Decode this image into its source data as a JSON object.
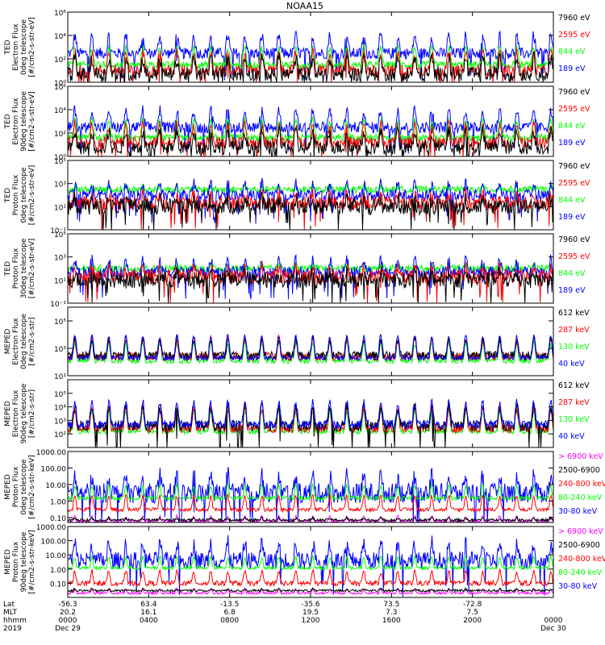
{
  "title": "NOAA15",
  "colors": {
    "black": "#000000",
    "blue": "#0000ff",
    "red": "#ff0000",
    "green": "#00ff00",
    "magenta": "#ff00ff"
  },
  "chart_data": [
    {
      "type": "line",
      "log": true,
      "ylim": [
        1,
        1000000
      ],
      "ylabel": [
        "TED",
        "Electron Flux",
        "0deg telescope",
        "[#/cm2-s-str-eV]"
      ],
      "yticks": [
        {
          "v": 1,
          "label": "10⁰"
        },
        {
          "v": 100,
          "label": "10²"
        },
        {
          "v": 10000,
          "label": "10⁴"
        },
        {
          "v": 1000000,
          "label": "10⁶"
        }
      ],
      "legend": [
        {
          "name": "7960 eV",
          "color": "black"
        },
        {
          "name": "2595 eV",
          "color": "red"
        },
        {
          "name": "844 eV",
          "color": "green"
        },
        {
          "name": "189 eV",
          "color": "blue"
        }
      ],
      "series": [
        {
          "color": "blue",
          "base": 300,
          "amp": 300,
          "noise": 3
        },
        {
          "color": "green",
          "base": 30,
          "amp": 300,
          "noise": 2
        },
        {
          "color": "red",
          "base": 10,
          "amp": 300,
          "noise": 3
        },
        {
          "color": "black",
          "base": 5,
          "amp": 200,
          "noise": 4
        }
      ]
    },
    {
      "type": "line",
      "log": true,
      "ylim": [
        1,
        1000000
      ],
      "ylabel": [
        "TED",
        "Electron Flux",
        "90deg telescope",
        "[#/cm2-s-str-eV]"
      ],
      "yticks": [
        {
          "v": 1,
          "label": "10⁰"
        },
        {
          "v": 100,
          "label": "10²"
        },
        {
          "v": 10000,
          "label": "10⁴"
        },
        {
          "v": 1000000,
          "label": "10⁶"
        }
      ],
      "legend": [
        {
          "name": "7960 eV",
          "color": "black"
        },
        {
          "name": "2595 eV",
          "color": "red"
        },
        {
          "name": "844 eV",
          "color": "green"
        },
        {
          "name": "189 eV",
          "color": "blue"
        }
      ],
      "series": [
        {
          "color": "blue",
          "base": 300,
          "amp": 300,
          "noise": 3
        },
        {
          "color": "green",
          "base": 40,
          "amp": 300,
          "noise": 2
        },
        {
          "color": "red",
          "base": 15,
          "amp": 300,
          "noise": 3
        },
        {
          "color": "black",
          "base": 6,
          "amp": 200,
          "noise": 4
        }
      ]
    },
    {
      "type": "line",
      "log": true,
      "ylim": [
        0.1,
        100000
      ],
      "ylabel": [
        "TED",
        "Proton Flux",
        "0deg telescope",
        "[#/cm2-s-str-eV]"
      ],
      "yticks": [
        {
          "v": 0.1,
          "label": "10⁻¹"
        },
        {
          "v": 10,
          "label": "10¹"
        },
        {
          "v": 1000,
          "label": "10³"
        },
        {
          "v": 100000,
          "label": "10⁵"
        }
      ],
      "legend": [
        {
          "name": "7960 eV",
          "color": "black"
        },
        {
          "name": "2595 eV",
          "color": "red"
        },
        {
          "name": "844 eV",
          "color": "green"
        },
        {
          "name": "189 eV",
          "color": "blue"
        }
      ],
      "series": [
        {
          "color": "green",
          "base": 300,
          "amp": 10,
          "noise": 2
        },
        {
          "color": "blue",
          "base": 100,
          "amp": 100,
          "noise": 3
        },
        {
          "color": "red",
          "base": 20,
          "amp": 50,
          "noise": 4
        },
        {
          "color": "black",
          "base": 10,
          "amp": 30,
          "noise": 5
        }
      ]
    },
    {
      "type": "line",
      "log": true,
      "ylim": [
        0.1,
        100000
      ],
      "ylabel": [
        "TED",
        "Proton Flux",
        "30deg telescope",
        "[#/cm2-s-str-eV]"
      ],
      "yticks": [
        {
          "v": 0.1,
          "label": "10⁻¹"
        },
        {
          "v": 10,
          "label": "10¹"
        },
        {
          "v": 1000,
          "label": "10³"
        },
        {
          "v": 100000,
          "label": "10⁵"
        }
      ],
      "legend": [
        {
          "name": "7960 eV",
          "color": "black"
        },
        {
          "name": "2595 eV",
          "color": "red"
        },
        {
          "name": "844 eV",
          "color": "green"
        },
        {
          "name": "189 eV",
          "color": "blue"
        }
      ],
      "series": [
        {
          "color": "green",
          "base": 100,
          "amp": 10,
          "noise": 2
        },
        {
          "color": "blue",
          "base": 50,
          "amp": 100,
          "noise": 3
        },
        {
          "color": "red",
          "base": 20,
          "amp": 50,
          "noise": 4
        },
        {
          "color": "black",
          "base": 10,
          "amp": 30,
          "noise": 5
        }
      ]
    },
    {
      "type": "line",
      "log": true,
      "ylim": [
        10,
        1000000
      ],
      "ylabel": [
        "MEPED",
        "Electron Flux",
        "0deg telescope",
        "[#/cm2-s-str]"
      ],
      "yticks": [
        {
          "v": 10,
          "label": "10¹"
        },
        {
          "v": 1000,
          "label": "10³"
        },
        {
          "v": 100000,
          "label": "10⁵"
        }
      ],
      "legend": [
        {
          "name": "612 keV",
          "color": "black"
        },
        {
          "name": "287 keV",
          "color": "red"
        },
        {
          "name": "130 keV",
          "color": "green"
        },
        {
          "name": "40 keV",
          "color": "blue"
        }
      ],
      "series": [
        {
          "color": "green",
          "base": 120,
          "amp": 200,
          "noise": 1.5
        },
        {
          "color": "red",
          "base": 250,
          "amp": 200,
          "noise": 2
        },
        {
          "color": "black",
          "base": 300,
          "amp": 150,
          "noise": 2
        },
        {
          "color": "blue",
          "base": 200,
          "amp": 400,
          "noise": 1.5
        }
      ]
    },
    {
      "type": "line",
      "log": true,
      "ylim": [
        10,
        1000000
      ],
      "ylabel": [
        "MEPED",
        "Electron Flux",
        "90deg telescope",
        "[#/cm2-s-str]"
      ],
      "yticks": [
        {
          "v": 100,
          "label": "10²"
        },
        {
          "v": 1000,
          "label": "10³"
        },
        {
          "v": 10000,
          "label": "10⁴"
        },
        {
          "v": 100000,
          "label": "10⁵"
        }
      ],
      "legend": [
        {
          "name": "612 keV",
          "color": "black"
        },
        {
          "name": "287 keV",
          "color": "red"
        },
        {
          "name": "130 keV",
          "color": "green"
        },
        {
          "name": "40 keV",
          "color": "blue"
        }
      ],
      "series": [
        {
          "color": "green",
          "base": 150,
          "amp": 300,
          "noise": 1.5
        },
        {
          "color": "red",
          "base": 250,
          "amp": 300,
          "noise": 2
        },
        {
          "color": "black",
          "base": 400,
          "amp": 250,
          "noise": 2.5
        },
        {
          "color": "blue",
          "base": 500,
          "amp": 400,
          "noise": 2
        }
      ]
    },
    {
      "type": "line",
      "log": true,
      "ylim": [
        0.05,
        1000
      ],
      "ylabel": [
        "MEPED",
        "Proton Flux",
        "0deg telescope",
        "[#/cm2-s-str-keV]"
      ],
      "yticks": [
        {
          "v": 0.1,
          "label": "0.10"
        },
        {
          "v": 1,
          "label": "1.00"
        },
        {
          "v": 10,
          "label": "10.00"
        },
        {
          "v": 100,
          "label": "100.00"
        },
        {
          "v": 1000,
          "label": "1000.00"
        }
      ],
      "legend": [
        {
          "name": "> 6900 keV",
          "color": "magenta"
        },
        {
          "name": "2500-6900",
          "color": "black"
        },
        {
          "name": "240-800 keV",
          "color": "red"
        },
        {
          "name": "80-240 keV",
          "color": "green"
        },
        {
          "name": "30-80 keV",
          "color": "blue"
        }
      ],
      "series": [
        {
          "color": "blue",
          "base": 3,
          "amp": 100,
          "noise": 4
        },
        {
          "color": "green",
          "base": 1.5,
          "amp": 50,
          "noise": 1.3
        },
        {
          "color": "red",
          "base": 0.3,
          "amp": 60,
          "noise": 1.3
        },
        {
          "color": "magenta",
          "base": 0.06,
          "amp": 10,
          "noise": 1.2
        },
        {
          "color": "black",
          "base": 0.07,
          "amp": 3,
          "noise": 1.2
        }
      ]
    },
    {
      "type": "line",
      "log": true,
      "ylim": [
        0.01,
        1000
      ],
      "ylabel": [
        "MEPED",
        "Proton Flux",
        "90deg telescope",
        "[#/cm2-s-str-keV]"
      ],
      "yticks": [
        {
          "v": 0.1,
          "label": "0.10"
        },
        {
          "v": 1,
          "label": "1.00"
        },
        {
          "v": 10,
          "label": "10.00"
        },
        {
          "v": 100,
          "label": "100.00"
        },
        {
          "v": 1000,
          "label": "1000.00"
        }
      ],
      "legend": [
        {
          "name": "> 6900 keV",
          "color": "magenta"
        },
        {
          "name": "2500-6900",
          "color": "black"
        },
        {
          "name": "240-800 keV",
          "color": "red"
        },
        {
          "name": "80-240 keV",
          "color": "green"
        },
        {
          "name": "30-80 keV",
          "color": "blue"
        }
      ],
      "series": [
        {
          "color": "blue",
          "base": 4,
          "amp": 150,
          "noise": 4
        },
        {
          "color": "green",
          "base": 1.2,
          "amp": 50,
          "noise": 1.3
        },
        {
          "color": "red",
          "base": 0.1,
          "amp": 60,
          "noise": 1.5
        },
        {
          "color": "magenta",
          "base": 0.02,
          "amp": 10,
          "noise": 1.2
        },
        {
          "color": "black",
          "base": 0.03,
          "amp": 3,
          "noise": 1.2
        }
      ]
    }
  ],
  "xaxis": {
    "row_labels": [
      "Lat",
      "MLT",
      "hhmm",
      "2019"
    ],
    "ticks": [
      {
        "t": 0,
        "lat": "-56.3",
        "mlt": "20.2",
        "hhmm": "0000",
        "day": "Dec 29"
      },
      {
        "t": 4,
        "lat": "63.4",
        "mlt": "16.1",
        "hhmm": "0400",
        "day": ""
      },
      {
        "t": 8,
        "lat": "-13.5",
        "mlt": "6.8",
        "hhmm": "0800",
        "day": ""
      },
      {
        "t": 12,
        "lat": "-35.6",
        "mlt": "19.5",
        "hhmm": "1200",
        "day": ""
      },
      {
        "t": 16,
        "lat": "73.5",
        "mlt": "7.3",
        "hhmm": "1600",
        "day": ""
      },
      {
        "t": 20,
        "lat": "-72.8",
        "mlt": "7.5",
        "hhmm": "2000",
        "day": ""
      },
      {
        "t": 24,
        "lat": "",
        "mlt": "",
        "hhmm": "0000",
        "day": "Dec 30"
      }
    ],
    "range_hours": [
      0,
      24
    ]
  }
}
